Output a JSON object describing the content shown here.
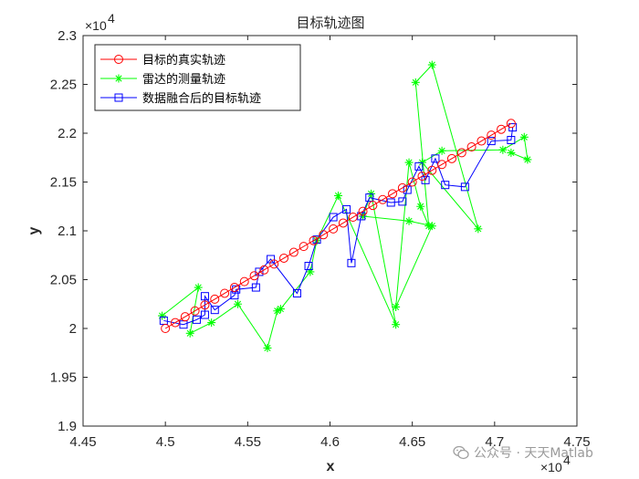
{
  "chart_data": {
    "type": "line",
    "title": "目标轨迹图",
    "xlabel": "x",
    "ylabel": "y",
    "xlim": [
      44500,
      47500
    ],
    "ylim": [
      19000,
      23000
    ],
    "x_ticks": [
      44500,
      45000,
      45500,
      46000,
      46500,
      47000,
      47500
    ],
    "y_ticks": [
      19000,
      19500,
      20000,
      20500,
      21000,
      21500,
      22000,
      22500,
      23000
    ],
    "x_tick_labels": [
      "4.45",
      "4.5",
      "4.55",
      "4.6",
      "4.65",
      "4.7",
      "4.75"
    ],
    "y_tick_labels": [
      "1.9",
      "1.95",
      "2",
      "2.05",
      "2.1",
      "2.15",
      "2.2",
      "2.25",
      "2.3"
    ],
    "x_exponent": "×10",
    "y_exponent": "×10",
    "exponent_power": "4",
    "grid": false,
    "legend_position": "top-left",
    "series": [
      {
        "name": "目标的真实轨迹",
        "color": "#ff0000",
        "marker": "circle",
        "x": [
          45000,
          45060,
          45120,
          45180,
          45240,
          45300,
          45360,
          45420,
          45480,
          45540,
          45600,
          45660,
          45720,
          45780,
          45840,
          45900,
          45960,
          46020,
          46080,
          46140,
          46200,
          46260,
          46320,
          46380,
          46440,
          46500,
          46560,
          46620,
          46680,
          46740,
          46800,
          46860,
          46920,
          46980,
          47040,
          47100
        ],
        "y": [
          20000,
          20060,
          20120,
          20180,
          20240,
          20300,
          20360,
          20420,
          20480,
          20540,
          20600,
          20660,
          20720,
          20780,
          20840,
          20900,
          20960,
          21020,
          21080,
          21140,
          21200,
          21260,
          21320,
          21380,
          21440,
          21500,
          21560,
          21620,
          21680,
          21740,
          21800,
          21860,
          21920,
          21980,
          22040,
          22100
        ]
      },
      {
        "name": "雷达的测量轨迹",
        "color": "#00ff00",
        "marker": "star",
        "x": [
          44980,
          45200,
          45150,
          45280,
          45440,
          45620,
          45680,
          45700,
          45880,
          45920,
          46050,
          46400,
          46250,
          46200,
          46480,
          46620,
          46400,
          46480,
          46550,
          46600,
          46520,
          46620,
          46900,
          46560,
          46680,
          47050,
          47180,
          47200,
          47100
        ],
        "y": [
          20130,
          20420,
          19950,
          20060,
          20250,
          19800,
          20180,
          20200,
          20580,
          20900,
          21360,
          20040,
          21380,
          21150,
          21100,
          21050,
          20220,
          21700,
          21250,
          21050,
          22520,
          22700,
          21020,
          21700,
          21820,
          21830,
          21960,
          21730,
          21800
        ]
      },
      {
        "name": "数据融合后的目标轨迹",
        "color": "#0000ff",
        "marker": "square",
        "x": [
          44990,
          45110,
          45190,
          45240,
          45240,
          45300,
          45420,
          45430,
          45550,
          45570,
          45640,
          45800,
          45870,
          45920,
          46020,
          46100,
          46130,
          46190,
          46240,
          46370,
          46440,
          46470,
          46540,
          46580,
          46640,
          46700,
          46820,
          46980,
          47100,
          47110
        ],
        "y": [
          20080,
          20040,
          20090,
          20140,
          20330,
          20190,
          20340,
          20400,
          20420,
          20580,
          20710,
          20360,
          20640,
          20910,
          21140,
          21220,
          20670,
          21150,
          21340,
          21290,
          21300,
          21420,
          21660,
          21520,
          21740,
          21470,
          21450,
          21920,
          21930,
          22060
        ]
      }
    ]
  },
  "watermark": "公众号 · 天天Matlab"
}
